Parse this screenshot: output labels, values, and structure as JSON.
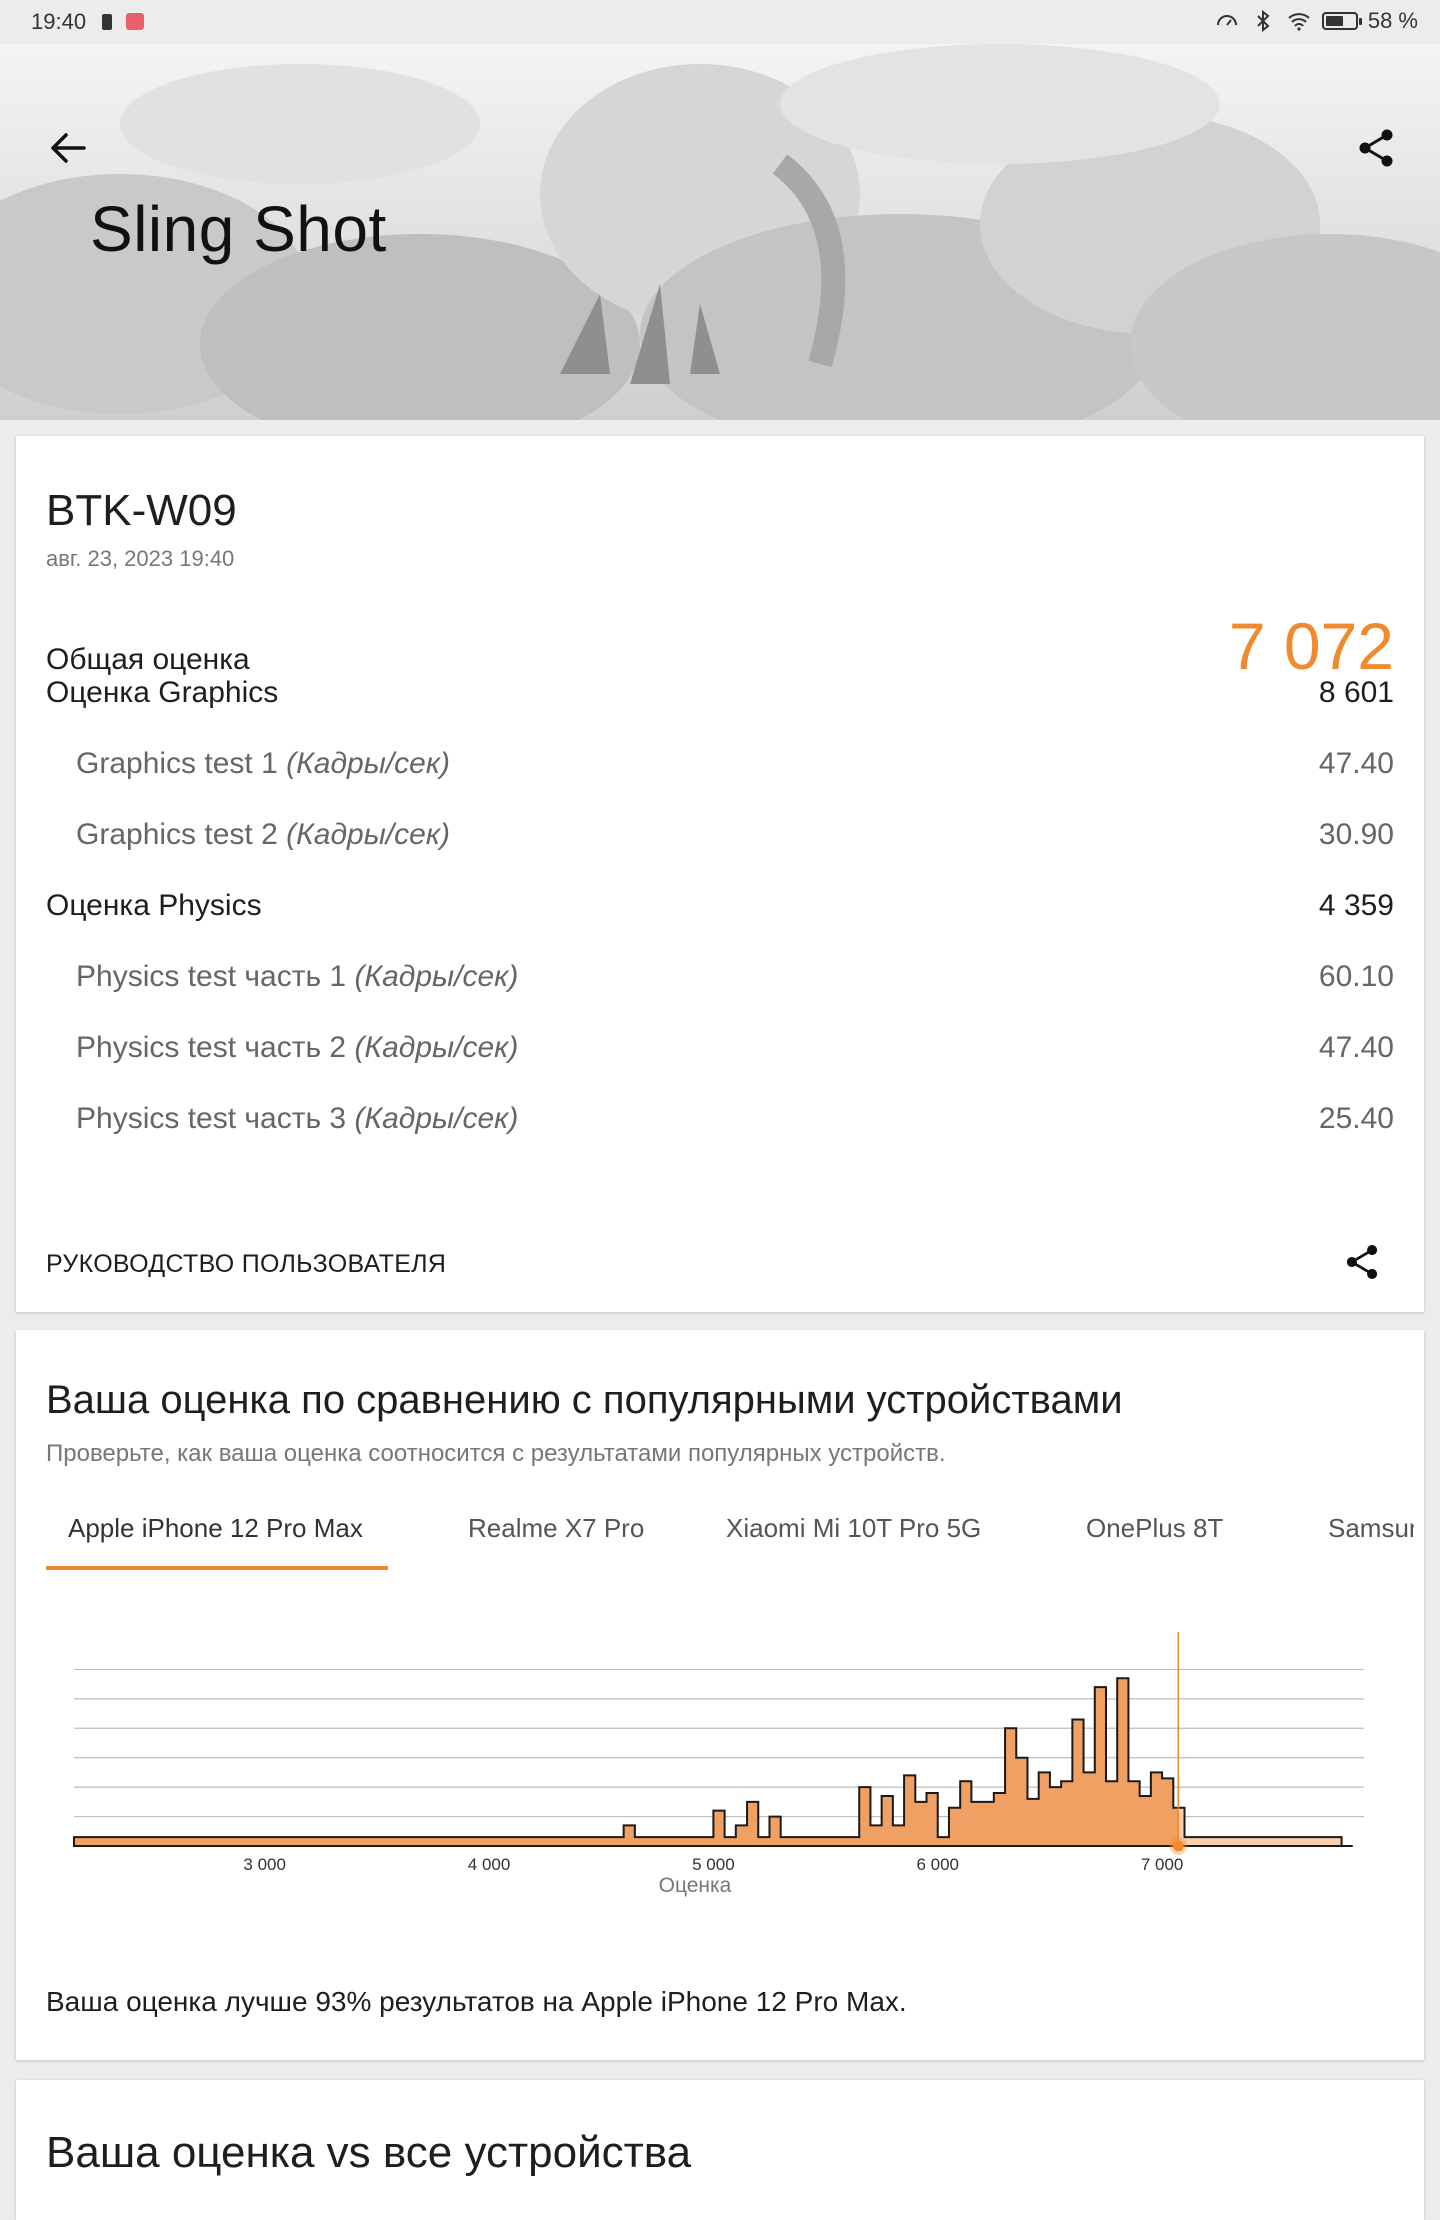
{
  "status_bar": {
    "time": "19:40",
    "battery": "58 %"
  },
  "header": {
    "title": "Sling Shot"
  },
  "result": {
    "device": "BTK-W09",
    "date": "авг. 23, 2023 19:40",
    "total_label": "Общая оценка",
    "total_value": "7 072",
    "rows": [
      {
        "label": "Оценка Graphics",
        "unit": "",
        "value": "8 601",
        "sub": false
      },
      {
        "label": "Graphics test 1",
        "unit": "(Кадры/сек)",
        "value": "47.40",
        "sub": true
      },
      {
        "label": "Graphics test 2",
        "unit": "(Кадры/сек)",
        "value": "30.90",
        "sub": true
      },
      {
        "label": "Оценка Physics",
        "unit": "",
        "value": "4 359",
        "sub": false
      },
      {
        "label": "Physics test часть 1",
        "unit": "(Кадры/сек)",
        "value": "60.10",
        "sub": true
      },
      {
        "label": "Physics test часть 2",
        "unit": "(Кадры/сек)",
        "value": "47.40",
        "sub": true
      },
      {
        "label": "Physics test часть 3",
        "unit": "(Кадры/сек)",
        "value": "25.40",
        "sub": true
      }
    ],
    "guide_label": "РУКОВОДСТВО ПОЛЬЗОВАТЕЛЯ"
  },
  "comparison": {
    "title": "Ваша оценка по сравнению с популярными устройствами",
    "subtitle": "Проверьте, как ваша оценка соотносится с результатами популярных устройств.",
    "tabs": [
      "Apple iPhone 12 Pro Max",
      "Realme X7 Pro",
      "Xiaomi Mi 10T Pro 5G",
      "OnePlus 8T",
      "Samsung"
    ],
    "active_tab": 0,
    "summary": "Ваша оценка лучше 93% результатов на Apple iPhone 12 Pro Max."
  },
  "chart_data": {
    "type": "area",
    "xlabel": "Оценка",
    "x_ticks": [
      3000,
      4000,
      5000,
      6000,
      7000
    ],
    "x_tick_labels": [
      "3 000",
      "4 000",
      "5 000",
      "6 000",
      "7 000"
    ],
    "xlim": [
      2150,
      7900
    ],
    "ylim": [
      0,
      7
    ],
    "grid": true,
    "marker_score": 7072,
    "bin_width": 50,
    "colors": {
      "fill": "#f0a062",
      "fill_above": "#f7cfae",
      "marker": "#f08a2e",
      "line": "#1a1a1a",
      "grid": "#bdbdbd"
    },
    "bins": [
      [
        3950,
        0.3
      ],
      [
        4050,
        0.3
      ],
      [
        4100,
        0.3
      ],
      [
        4150,
        0.3
      ],
      [
        4300,
        0.3
      ],
      [
        4600,
        0.7
      ],
      [
        5000,
        1.2
      ],
      [
        5100,
        0.7
      ],
      [
        5150,
        1.5
      ],
      [
        5250,
        1.0
      ],
      [
        5650,
        2.0
      ],
      [
        5700,
        0.7
      ],
      [
        5750,
        1.7
      ],
      [
        5800,
        0.7
      ],
      [
        5850,
        2.4
      ],
      [
        5900,
        1.5
      ],
      [
        5950,
        1.8
      ],
      [
        6050,
        1.3
      ],
      [
        6100,
        2.2
      ],
      [
        6150,
        1.5
      ],
      [
        6200,
        1.5
      ],
      [
        6250,
        1.8
      ],
      [
        6300,
        4.0
      ],
      [
        6350,
        3.0
      ],
      [
        6400,
        1.6
      ],
      [
        6450,
        2.5
      ],
      [
        6500,
        2.0
      ],
      [
        6550,
        2.2
      ],
      [
        6600,
        4.3
      ],
      [
        6650,
        2.5
      ],
      [
        6700,
        5.4
      ],
      [
        6750,
        2.2
      ],
      [
        6800,
        5.7
      ],
      [
        6850,
        2.2
      ],
      [
        6900,
        1.7
      ],
      [
        6950,
        2.5
      ],
      [
        7000,
        2.3
      ],
      [
        7050,
        1.3
      ],
      [
        7100,
        0.3
      ],
      [
        7200,
        0.3
      ],
      [
        7400,
        0.3
      ],
      [
        7500,
        0.3
      ],
      [
        7700,
        0.3
      ]
    ]
  },
  "all_devices": {
    "title": "Ваша оценка vs все устройства"
  }
}
